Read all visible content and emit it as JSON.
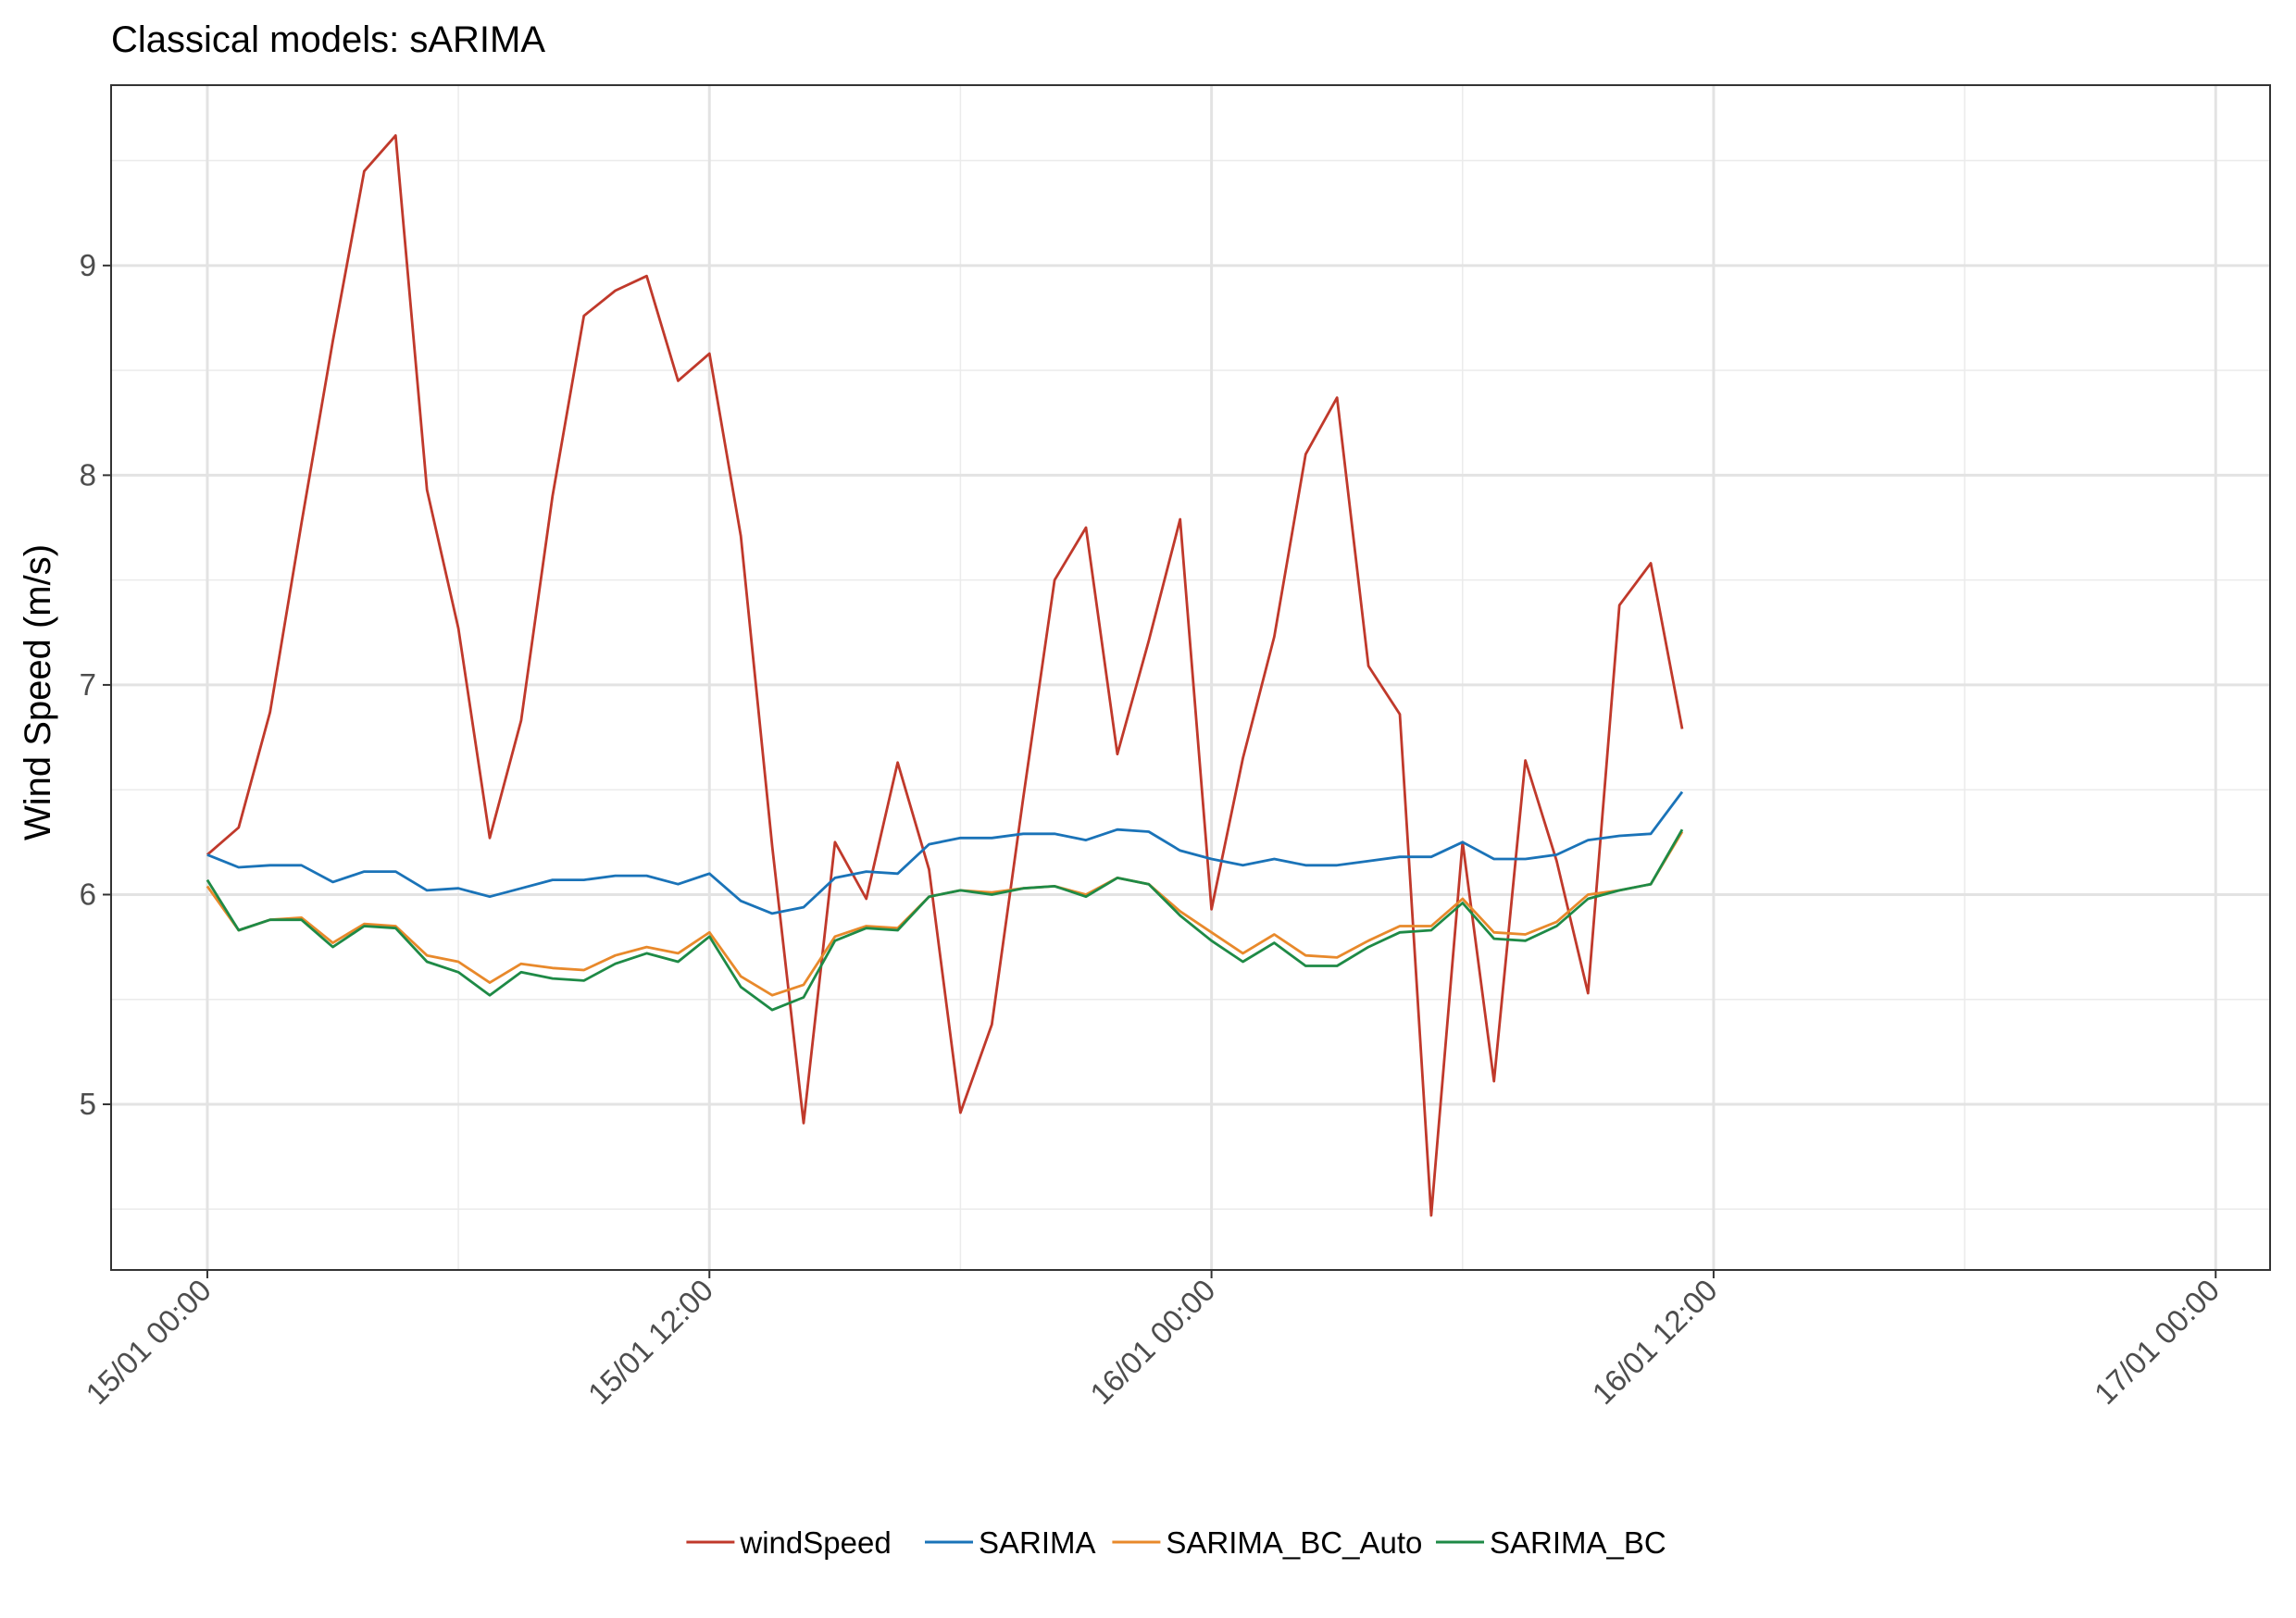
{
  "chart_data": {
    "type": "line",
    "title": "Classical models: sARIMA",
    "xlabel": "",
    "ylabel": "Wind Speed (m/s)",
    "x_unit": "datetime",
    "x_start": "15/01 00:00",
    "x_step_minutes": 45,
    "x_ticks": [
      "15/01 00:00",
      "15/01 12:00",
      "16/01 00:00",
      "16/01 12:00",
      "17/01 00:00"
    ],
    "x_tick_hours": [
      0,
      12,
      24,
      36,
      48
    ],
    "xlim_hours": [
      -2.3,
      49.3
    ],
    "y_ticks": [
      "5",
      "6",
      "7",
      "8",
      "9"
    ],
    "y_tick_values": [
      5,
      6,
      7,
      8,
      9
    ],
    "ylim": [
      4.21,
      9.86
    ],
    "grid": true,
    "legend_position": "bottom",
    "series": [
      {
        "name": "windSpeed",
        "color": "#c0392b",
        "values": [
          6.19,
          6.32,
          6.87,
          7.77,
          8.64,
          9.45,
          9.62,
          7.93,
          7.27,
          6.27,
          6.83,
          7.9,
          8.76,
          8.88,
          8.95,
          8.45,
          8.58,
          7.71,
          6.23,
          4.91,
          6.25,
          5.98,
          6.63,
          6.12,
          4.96,
          5.38,
          6.46,
          7.5,
          7.75,
          6.67,
          7.21,
          7.79,
          5.93,
          6.65,
          7.23,
          8.1,
          8.37,
          7.09,
          6.86,
          4.47,
          6.25,
          5.11,
          6.64,
          6.16,
          5.53,
          7.38,
          7.58,
          6.79
        ]
      },
      {
        "name": "SARIMA",
        "color": "#1a73b8",
        "values": [
          6.19,
          6.13,
          6.14,
          6.14,
          6.06,
          6.11,
          6.11,
          6.02,
          6.03,
          5.99,
          6.03,
          6.07,
          6.07,
          6.09,
          6.09,
          6.05,
          6.1,
          5.97,
          5.91,
          5.94,
          6.08,
          6.11,
          6.1,
          6.24,
          6.27,
          6.27,
          6.29,
          6.29,
          6.26,
          6.31,
          6.3,
          6.21,
          6.17,
          6.14,
          6.17,
          6.14,
          6.14,
          6.16,
          6.18,
          6.18,
          6.25,
          6.17,
          6.17,
          6.19,
          6.26,
          6.28,
          6.29,
          6.49
        ]
      },
      {
        "name": "SARIMA_BC_Auto",
        "color": "#e8892b",
        "values": [
          6.04,
          5.83,
          5.88,
          5.89,
          5.77,
          5.86,
          5.85,
          5.71,
          5.68,
          5.58,
          5.67,
          5.65,
          5.64,
          5.71,
          5.75,
          5.72,
          5.82,
          5.61,
          5.52,
          5.57,
          5.8,
          5.85,
          5.84,
          5.99,
          6.02,
          6.01,
          6.03,
          6.04,
          6.0,
          6.08,
          6.05,
          5.92,
          5.82,
          5.72,
          5.81,
          5.71,
          5.7,
          5.78,
          5.85,
          5.85,
          5.98,
          5.82,
          5.81,
          5.87,
          6.0,
          6.02,
          6.05,
          6.3
        ]
      },
      {
        "name": "SARIMA_BC",
        "color": "#1e8a46",
        "values": [
          6.07,
          5.83,
          5.88,
          5.88,
          5.75,
          5.85,
          5.84,
          5.68,
          5.63,
          5.52,
          5.63,
          5.6,
          5.59,
          5.67,
          5.72,
          5.68,
          5.8,
          5.56,
          5.45,
          5.51,
          5.78,
          5.84,
          5.83,
          5.99,
          6.02,
          6.0,
          6.03,
          6.04,
          5.99,
          6.08,
          6.05,
          5.9,
          5.78,
          5.68,
          5.77,
          5.66,
          5.66,
          5.75,
          5.82,
          5.83,
          5.96,
          5.79,
          5.78,
          5.85,
          5.98,
          6.02,
          6.05,
          6.31
        ]
      }
    ]
  }
}
